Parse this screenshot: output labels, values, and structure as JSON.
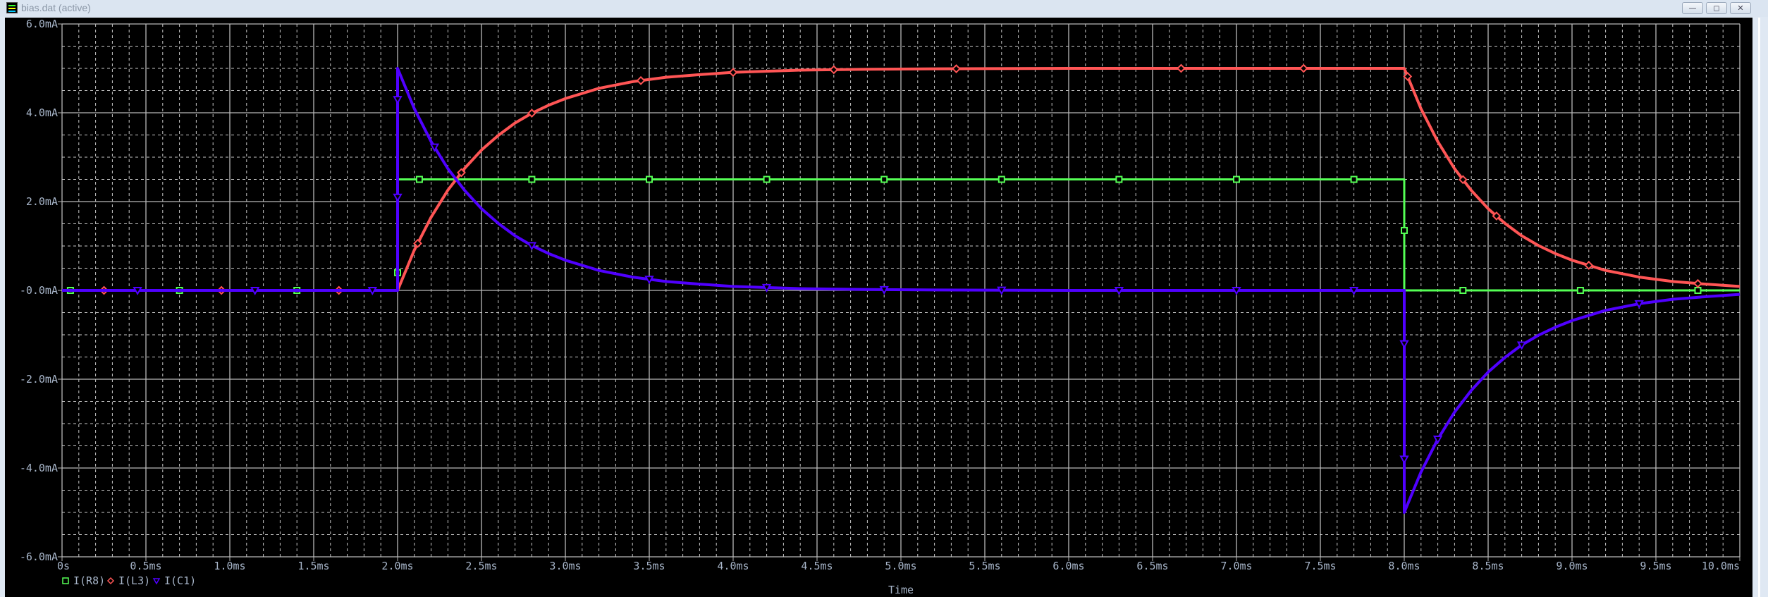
{
  "window": {
    "title": "bias.dat (active)",
    "minimize": "—",
    "restore": "◻",
    "close": "✕"
  },
  "chart_data": {
    "type": "line",
    "title": "",
    "xlabel": "Time",
    "ylabel": "",
    "xlim": [
      0,
      10.0
    ],
    "ylim": [
      -6.0,
      6.0
    ],
    "x_unit": "ms",
    "y_unit": "mA",
    "grid": true,
    "background": "#000000",
    "legend_position": "bottom-left",
    "x_ticks": [
      "0s",
      "0.5ms",
      "1.0ms",
      "1.5ms",
      "2.0ms",
      "2.5ms",
      "3.0ms",
      "3.5ms",
      "4.0ms",
      "4.5ms",
      "5.0ms",
      "5.5ms",
      "6.0ms",
      "6.5ms",
      "7.0ms",
      "7.5ms",
      "8.0ms",
      "8.5ms",
      "9.0ms",
      "9.5ms",
      "10.0ms"
    ],
    "y_ticks": [
      "6.0mA",
      "4.0mA",
      "2.0mA",
      "-0.0mA",
      "-2.0mA",
      "-4.0mA",
      "-6.0mA"
    ],
    "series": [
      {
        "name": "I(R8)",
        "color": "#55ff55",
        "marker": "square",
        "x": [
          0,
          2.0,
          2.0,
          8.0,
          8.0,
          10.0
        ],
        "y": [
          0,
          0,
          2.5,
          2.5,
          0,
          0
        ]
      },
      {
        "name": "I(L3)",
        "color": "#ff5555",
        "marker": "diamond",
        "x": [
          0,
          2.0,
          2.1,
          2.2,
          2.3,
          2.4,
          2.5,
          2.6,
          2.7,
          2.8,
          2.9,
          3.0,
          3.2,
          3.4,
          3.6,
          3.8,
          4.0,
          4.4,
          4.8,
          5.2,
          6.0,
          8.0,
          8.1,
          8.2,
          8.3,
          8.4,
          8.5,
          8.6,
          8.7,
          8.8,
          8.9,
          9.0,
          9.2,
          9.4,
          9.6,
          9.8,
          10.0
        ],
        "y": [
          0,
          0,
          0.91,
          1.65,
          2.26,
          2.75,
          3.16,
          3.49,
          3.77,
          3.99,
          4.17,
          4.32,
          4.55,
          4.7,
          4.8,
          4.86,
          4.91,
          4.96,
          4.98,
          4.99,
          5.0,
          5.0,
          4.09,
          3.35,
          2.74,
          2.25,
          1.84,
          1.51,
          1.23,
          1.01,
          0.83,
          0.68,
          0.45,
          0.3,
          0.2,
          0.14,
          0.09
        ]
      },
      {
        "name": "I(C1)",
        "color": "#5000ff",
        "marker": "triangle-down",
        "x": [
          0,
          2.0,
          2.0,
          2.1,
          2.2,
          2.3,
          2.4,
          2.5,
          2.6,
          2.7,
          2.8,
          2.9,
          3.0,
          3.2,
          3.4,
          3.6,
          3.8,
          4.0,
          4.4,
          4.8,
          5.2,
          6.0,
          8.0,
          8.0,
          8.1,
          8.2,
          8.3,
          8.4,
          8.5,
          8.6,
          8.7,
          8.8,
          8.9,
          9.0,
          9.2,
          9.4,
          9.6,
          9.8,
          10.0
        ],
        "y": [
          0,
          0,
          5.0,
          4.09,
          3.35,
          2.74,
          2.25,
          1.84,
          1.51,
          1.23,
          1.01,
          0.83,
          0.68,
          0.45,
          0.3,
          0.2,
          0.14,
          0.09,
          0.04,
          0.02,
          0.01,
          0,
          0,
          -5.0,
          -4.09,
          -3.35,
          -2.74,
          -2.25,
          -1.84,
          -1.51,
          -1.23,
          -1.01,
          -0.83,
          -0.68,
          -0.45,
          -0.3,
          -0.2,
          -0.14,
          -0.09
        ]
      }
    ]
  }
}
